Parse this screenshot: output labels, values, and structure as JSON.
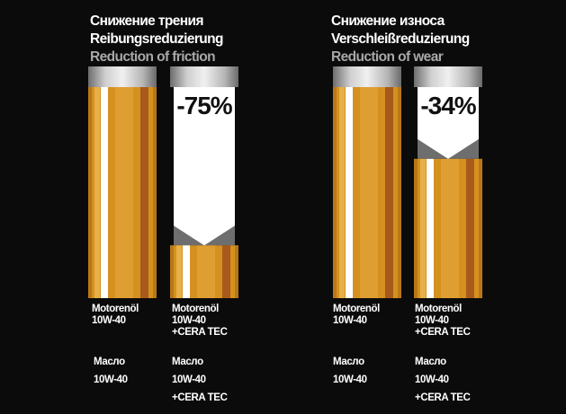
{
  "chart_data": [
    {
      "type": "bar",
      "title_ru": "Снижение трения",
      "title_de": "Reibungsreduzierung",
      "title_en": "Reduction of friction",
      "categories": [
        {
          "de": "Motorenöl\n10W-40",
          "ru": "Масло\n10W-40"
        },
        {
          "de": "Motorenöl\n10W-40\n+CERA TEC",
          "ru": "Масло\n10W-40\n+CERA TEC"
        }
      ],
      "values": [
        100,
        25
      ],
      "reduction_label": "-75%",
      "ylim": [
        0,
        100
      ]
    },
    {
      "type": "bar",
      "title_ru": "Снижение износа",
      "title_de": "Verschleißreduzierung",
      "title_en": "Reduction of wear",
      "categories": [
        {
          "de": "Motorenöl\n10W-40",
          "ru": "Масло\n10W-40"
        },
        {
          "de": "Motorenöl\n10W-40\n+CERA TEC",
          "ru": "Масло\n10W-40\n+CERA TEC"
        }
      ],
      "values": [
        100,
        66
      ],
      "reduction_label": "-34%",
      "ylim": [
        0,
        100
      ]
    }
  ],
  "colors": {
    "oil_main": "#d5911f",
    "oil_light": "#e8b048",
    "oil_stripe": "#ffffff",
    "oil_dark": "#a85a1c",
    "cap_light": "#e2e2e2",
    "cap_dark": "#8a8a8a",
    "empty_fill": "#ffffff",
    "background": "#0c0b0b"
  }
}
